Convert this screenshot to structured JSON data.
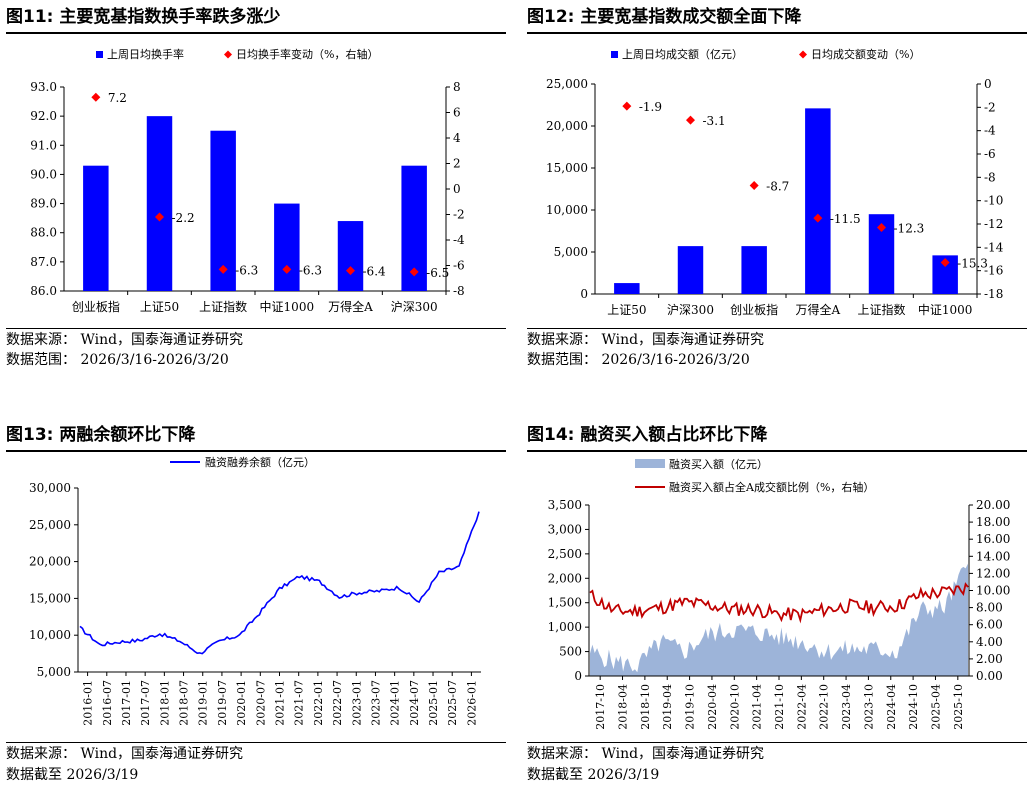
{
  "charts": [
    {
      "title": "图11:  主要宽基指数换手率跌多涨少",
      "source": "数据来源：  Wind，国泰海通证券研究",
      "range": "数据范围：  2026/3/16-2026/3/20"
    },
    {
      "title": "图12:  主要宽基指数成交额全面下降",
      "source": "数据来源：  Wind，国泰海通证券研究",
      "range": "数据范围：  2026/3/16-2026/3/20"
    },
    {
      "title": "图13:  两融余额环比下降",
      "source": "数据来源：  Wind，国泰海通证券研究",
      "range": "数据截至 2026/3/19"
    },
    {
      "title": "图14:  融资买入额占比环比下降",
      "source": "数据来源：  Wind，国泰海通证券研究",
      "range": "数据截至 2026/3/19"
    }
  ],
  "colors": {
    "bar": "#0000ff",
    "diamond": "#ff0000",
    "line": "#0000ff",
    "area": "#9db4d9",
    "redline": "#c00000"
  },
  "chart_data": [
    {
      "type": "bar",
      "categories": [
        "创业板指",
        "上证50",
        "上证指数",
        "中证1000",
        "万得全A",
        "沪深300"
      ],
      "series": [
        {
          "name": "上周日均换手率",
          "type": "bar",
          "axis": "left",
          "values": [
            90.3,
            92.0,
            91.5,
            89.0,
            88.4,
            90.3
          ]
        },
        {
          "name": "日均换手率变动（%，右轴）",
          "type": "scatter",
          "axis": "right",
          "values": [
            7.2,
            -2.2,
            -6.3,
            -6.3,
            -6.4,
            -6.5
          ]
        }
      ],
      "ylim": [
        86,
        93
      ],
      "yticks": [
        "86.0",
        "87.0",
        "88.0",
        "89.0",
        "90.0",
        "91.0",
        "92.0",
        "93.0"
      ],
      "y2lim": [
        -8,
        8
      ],
      "y2ticks": [
        "-8",
        "-6",
        "-4",
        "-2",
        "0",
        "2",
        "4",
        "6",
        "8"
      ],
      "legend": "top-center"
    },
    {
      "type": "bar",
      "categories": [
        "上证50",
        "沪深300",
        "创业板指",
        "万得全A",
        "上证指数",
        "中证1000"
      ],
      "series": [
        {
          "name": "上周日均成交额（亿元）",
          "type": "bar",
          "axis": "left",
          "values": [
            1300,
            5700,
            5700,
            22100,
            9500,
            4600
          ]
        },
        {
          "name": "日均成交额变动（%）",
          "type": "scatter",
          "axis": "right",
          "values": [
            -1.9,
            -3.1,
            -8.7,
            -11.5,
            -12.3,
            -15.3
          ]
        }
      ],
      "ylim": [
        0,
        25000
      ],
      "yticks": [
        "0",
        "5,000",
        "10,000",
        "15,000",
        "20,000",
        "25,000"
      ],
      "y2lim": [
        -18,
        0
      ],
      "y2ticks": [
        "-18",
        "-16",
        "-14",
        "-12",
        "-10",
        "-8",
        "-6",
        "-4",
        "-2",
        "0"
      ],
      "legend": "top-center"
    },
    {
      "type": "line",
      "series": [
        {
          "name": "融资融券余额（亿元）"
        }
      ],
      "x": [
        "2016-01",
        "2016-07",
        "2017-01",
        "2017-07",
        "2018-01",
        "2018-07",
        "2019-01",
        "2019-07",
        "2020-01",
        "2020-07",
        "2021-01",
        "2021-07",
        "2022-01",
        "2022-07",
        "2023-01",
        "2023-07",
        "2024-01",
        "2024-07",
        "2025-01",
        "2025-07",
        "2026-01"
      ],
      "values": [
        11000,
        8700,
        9100,
        9300,
        10200,
        9200,
        7500,
        9200,
        10000,
        13000,
        16300,
        18000,
        17300,
        15200,
        15800,
        16000,
        16500,
        14500,
        18500,
        19300,
        26800
      ],
      "ylim": [
        5000,
        30000
      ],
      "yticks": [
        "5,000",
        "10,000",
        "15,000",
        "20,000",
        "25,000",
        "30,000"
      ],
      "legend": "top-center"
    },
    {
      "type": "area",
      "series": [
        {
          "name": "融资买入额（亿元）",
          "axis": "left"
        },
        {
          "name": "融资买入额占全A成交额比例（%，右轴）",
          "axis": "right"
        }
      ],
      "x": [
        "2017-10",
        "2018-04",
        "2018-10",
        "2019-04",
        "2019-10",
        "2020-04",
        "2020-10",
        "2021-04",
        "2021-10",
        "2022-04",
        "2022-10",
        "2023-04",
        "2023-10",
        "2024-04",
        "2024-10",
        "2025-04",
        "2025-10"
      ],
      "area_values": [
        500,
        300,
        200,
        700,
        500,
        850,
        950,
        900,
        800,
        700,
        500,
        550,
        550,
        500,
        1350,
        1400,
        2300
      ],
      "line_values": [
        9.5,
        7.6,
        7.6,
        8.0,
        8.6,
        8.3,
        7.8,
        7.8,
        7.2,
        7.2,
        7.8,
        8.2,
        8.0,
        8.2,
        9.5,
        9.8,
        10.4
      ],
      "ylim": [
        0,
        3500
      ],
      "yticks": [
        "0",
        "500",
        "1,000",
        "1,500",
        "2,000",
        "2,500",
        "3,000",
        "3,500"
      ],
      "y2lim": [
        0,
        20
      ],
      "y2ticks": [
        "0.00",
        "2.00",
        "4.00",
        "6.00",
        "8.00",
        "10.00",
        "12.00",
        "14.00",
        "16.00",
        "18.00",
        "20.00"
      ],
      "legend": "top-center"
    }
  ]
}
